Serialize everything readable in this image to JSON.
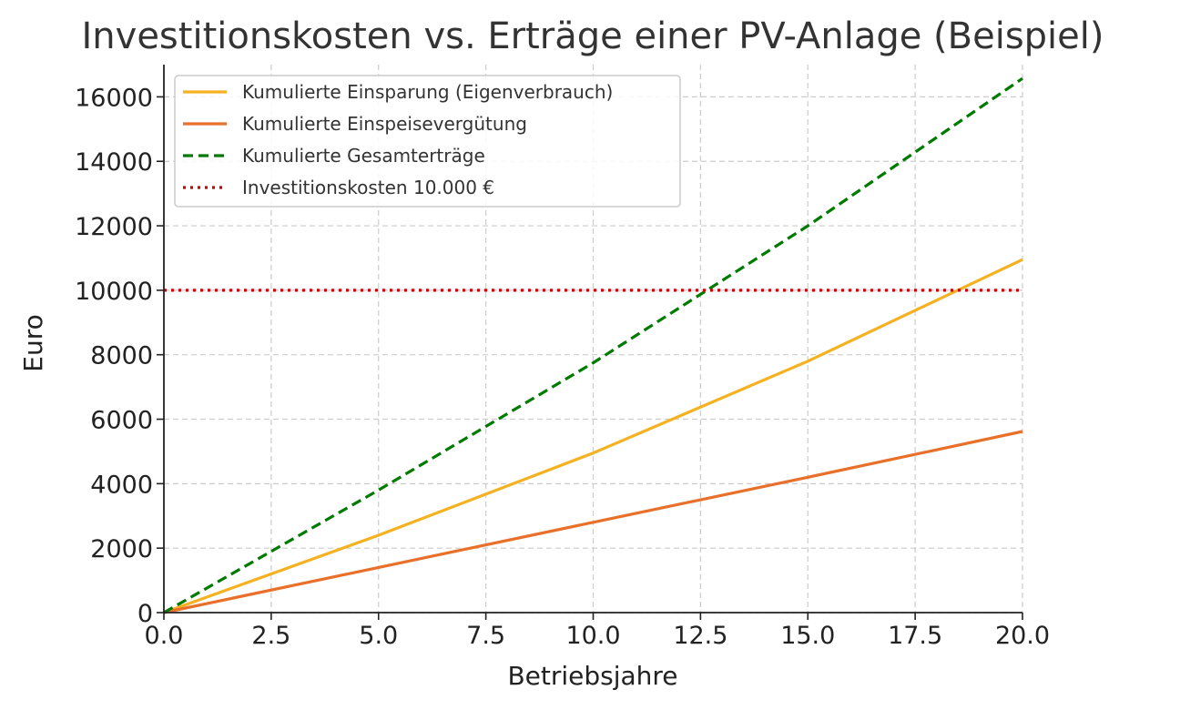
{
  "chart_data": {
    "type": "line",
    "title": "Investitionskosten vs. Erträge einer PV-Anlage (Beispiel)",
    "xlabel": "Betriebsjahre",
    "ylabel": "Euro",
    "xlim": [
      0,
      20
    ],
    "ylim": [
      0,
      17000
    ],
    "xticks": [
      "0.0",
      "2.5",
      "5.0",
      "7.5",
      "10.0",
      "12.5",
      "15.0",
      "17.5",
      "20.0"
    ],
    "yticks": [
      "0",
      "2000",
      "4000",
      "6000",
      "8000",
      "10000",
      "12000",
      "14000",
      "16000"
    ],
    "grid": true,
    "legend_position": "upper-left",
    "series": [
      {
        "name": "Kumulierte Einsparung (Eigenverbrauch)",
        "color": "#F5B120",
        "style": "solid",
        "x": [
          0,
          5,
          10,
          15,
          20
        ],
        "values": [
          0,
          2400,
          4950,
          7800,
          10950
        ]
      },
      {
        "name": "Kumulierte Einspeisevergütung",
        "color": "#E8702A",
        "style": "solid",
        "x": [
          0,
          5,
          10,
          15,
          20
        ],
        "values": [
          0,
          1400,
          2800,
          4200,
          5620
        ]
      },
      {
        "name": "Kumulierte Gesamterträge",
        "color": "#007A00",
        "style": "dashed",
        "x": [
          0,
          5,
          10,
          15,
          20
        ],
        "values": [
          0,
          3800,
          7750,
          12000,
          16570
        ]
      },
      {
        "name": "Investitionskosten 10.000 €",
        "color": "#D40000",
        "style": "dotted",
        "x": [
          0,
          20
        ],
        "values": [
          10000,
          10000
        ]
      }
    ]
  }
}
